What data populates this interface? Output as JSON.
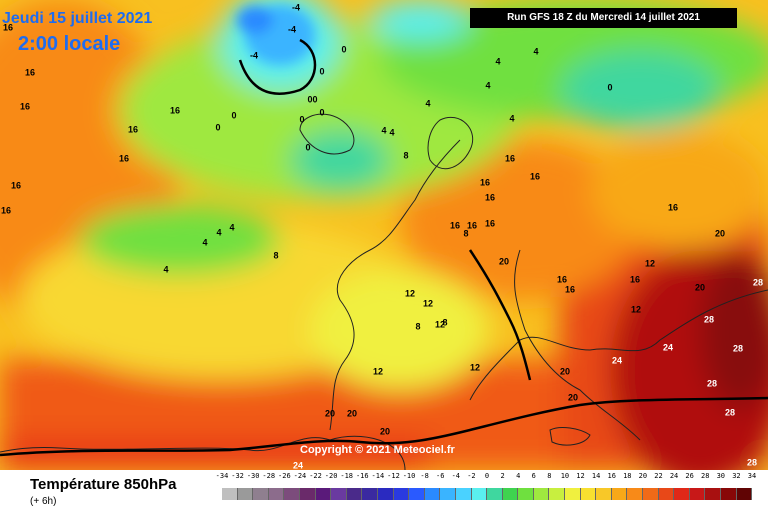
{
  "header": {
    "date": "Jeudi 15 juillet 2021",
    "hour": "2:00 locale",
    "run": "Run GFS 18 Z du Mercredi 14 juillet 2021"
  },
  "copyright": "Copyright © 2021 Meteociel.fr",
  "footer": {
    "title": "Température 850hPa",
    "offset": "(+ 6h)"
  },
  "legend": {
    "labels": [
      "-34",
      "-32",
      "-30",
      "-28",
      "-26",
      "-24",
      "-22",
      "-20",
      "-18",
      "-16",
      "-14",
      "-12",
      "-10",
      "-8",
      "-6",
      "-4",
      "-2",
      "0",
      "2",
      "4",
      "6",
      "8",
      "10",
      "12",
      "14",
      "16",
      "18",
      "20",
      "22",
      "24",
      "26",
      "28",
      "30",
      "32",
      "34"
    ],
    "colors": [
      "#bfbfbf",
      "#9a9a9a",
      "#8f7f8f",
      "#8c6c8c",
      "#7c4c7c",
      "#6a2a6a",
      "#5a1a7a",
      "#6a3aa0",
      "#4a2a8a",
      "#3a2aa0",
      "#2a2ac0",
      "#2a3ae0",
      "#2a5aff",
      "#2a8aff",
      "#3ab4ff",
      "#4ad2ff",
      "#5aefef",
      "#3fd79f",
      "#3fd34f",
      "#6fe03f",
      "#9fe83f",
      "#c8ef3f",
      "#f0f03f",
      "#f8e030",
      "#f8c828",
      "#f8a818",
      "#f88a18",
      "#f06a18",
      "#e84818",
      "#e02818",
      "#c81818",
      "#a81010",
      "#880808",
      "#600404"
    ]
  },
  "map_labels": [
    "16",
    "16",
    "16",
    "16",
    "16",
    "16",
    "16",
    "16",
    "16",
    "16",
    "16",
    "16",
    "16",
    "16",
    "16",
    "16",
    "16",
    "16",
    "16",
    "20",
    "20",
    "20",
    "20",
    "20",
    "20",
    "20",
    "20",
    "24",
    "24",
    "24",
    "28",
    "28",
    "28",
    "28",
    "28",
    "28",
    "12",
    "12",
    "12",
    "12",
    "12",
    "12",
    "12",
    "8",
    "8",
    "8",
    "8",
    "8",
    "4",
    "4",
    "4",
    "4",
    "4",
    "4",
    "4",
    "4",
    "4",
    "4",
    "4",
    "0",
    "0",
    "0",
    "0",
    "0",
    "0",
    "0",
    "0",
    "0",
    "0",
    "-4",
    "-4",
    "-4"
  ]
}
